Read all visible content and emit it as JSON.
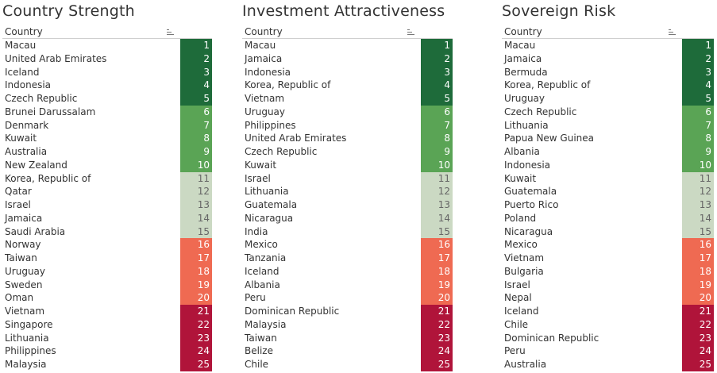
{
  "colors": {
    "tier1": "#1e6b3a",
    "tier2": "#5aa455",
    "tier3": "#cbd9c3",
    "tier4": "#ef6a52",
    "tier5": "#b0143a"
  },
  "panels": [
    {
      "title": "Country Strength",
      "column_header": "Country",
      "sort_icon": "sort-descending-icon",
      "rows": [
        {
          "country": "Macau",
          "rank": "1"
        },
        {
          "country": "United Arab Emirates",
          "rank": "2"
        },
        {
          "country": "Iceland",
          "rank": "3"
        },
        {
          "country": "Indonesia",
          "rank": "4"
        },
        {
          "country": "Czech Republic",
          "rank": "5"
        },
        {
          "country": "Brunei Darussalam",
          "rank": "6"
        },
        {
          "country": "Denmark",
          "rank": "7"
        },
        {
          "country": "Kuwait",
          "rank": "8"
        },
        {
          "country": "Australia",
          "rank": "9"
        },
        {
          "country": "New Zealand",
          "rank": "10"
        },
        {
          "country": "Korea, Republic of",
          "rank": "11"
        },
        {
          "country": "Qatar",
          "rank": "12"
        },
        {
          "country": "Israel",
          "rank": "13"
        },
        {
          "country": "Jamaica",
          "rank": "14"
        },
        {
          "country": "Saudi Arabia",
          "rank": "15"
        },
        {
          "country": "Norway",
          "rank": "16"
        },
        {
          "country": "Taiwan",
          "rank": "17"
        },
        {
          "country": "Uruguay",
          "rank": "18"
        },
        {
          "country": "Sweden",
          "rank": "19"
        },
        {
          "country": "Oman",
          "rank": "20"
        },
        {
          "country": "Vietnam",
          "rank": "21"
        },
        {
          "country": "Singapore",
          "rank": "22"
        },
        {
          "country": "Lithuania",
          "rank": "23"
        },
        {
          "country": "Philippines",
          "rank": "24"
        },
        {
          "country": "Malaysia",
          "rank": "25"
        }
      ]
    },
    {
      "title": "Investment Attractiveness",
      "column_header": "Country",
      "sort_icon": "sort-descending-icon",
      "rows": [
        {
          "country": "Macau",
          "rank": "1"
        },
        {
          "country": "Jamaica",
          "rank": "2"
        },
        {
          "country": "Indonesia",
          "rank": "3"
        },
        {
          "country": "Korea, Republic of",
          "rank": "4"
        },
        {
          "country": "Vietnam",
          "rank": "5"
        },
        {
          "country": "Uruguay",
          "rank": "6"
        },
        {
          "country": "Philippines",
          "rank": "7"
        },
        {
          "country": "United Arab Emirates",
          "rank": "8"
        },
        {
          "country": "Czech Republic",
          "rank": "9"
        },
        {
          "country": "Kuwait",
          "rank": "10"
        },
        {
          "country": "Israel",
          "rank": "11"
        },
        {
          "country": "Lithuania",
          "rank": "12"
        },
        {
          "country": "Guatemala",
          "rank": "13"
        },
        {
          "country": "Nicaragua",
          "rank": "14"
        },
        {
          "country": "India",
          "rank": "15"
        },
        {
          "country": "Mexico",
          "rank": "16"
        },
        {
          "country": "Tanzania",
          "rank": "17"
        },
        {
          "country": "Iceland",
          "rank": "18"
        },
        {
          "country": "Albania",
          "rank": "19"
        },
        {
          "country": "Peru",
          "rank": "20"
        },
        {
          "country": "Dominican Republic",
          "rank": "21"
        },
        {
          "country": "Malaysia",
          "rank": "22"
        },
        {
          "country": "Taiwan",
          "rank": "23"
        },
        {
          "country": "Belize",
          "rank": "24"
        },
        {
          "country": "Chile",
          "rank": "25"
        }
      ]
    },
    {
      "title": "Sovereign Risk",
      "column_header": "Country",
      "sort_icon": "sort-descending-icon",
      "rows": [
        {
          "country": "Macau",
          "rank": "1"
        },
        {
          "country": "Jamaica",
          "rank": "2"
        },
        {
          "country": "Bermuda",
          "rank": "3"
        },
        {
          "country": "Korea, Republic of",
          "rank": "4"
        },
        {
          "country": "Uruguay",
          "rank": "5"
        },
        {
          "country": "Czech Republic",
          "rank": "6"
        },
        {
          "country": "Lithuania",
          "rank": "7"
        },
        {
          "country": "Papua New Guinea",
          "rank": "8"
        },
        {
          "country": "Albania",
          "rank": "9"
        },
        {
          "country": "Indonesia",
          "rank": "10"
        },
        {
          "country": "Kuwait",
          "rank": "11"
        },
        {
          "country": "Guatemala",
          "rank": "12"
        },
        {
          "country": "Puerto Rico",
          "rank": "13"
        },
        {
          "country": "Poland",
          "rank": "14"
        },
        {
          "country": "Nicaragua",
          "rank": "15"
        },
        {
          "country": "Mexico",
          "rank": "16"
        },
        {
          "country": "Vietnam",
          "rank": "17"
        },
        {
          "country": "Bulgaria",
          "rank": "18"
        },
        {
          "country": "Israel",
          "rank": "19"
        },
        {
          "country": "Nepal",
          "rank": "20"
        },
        {
          "country": "Iceland",
          "rank": "21"
        },
        {
          "country": "Chile",
          "rank": "22"
        },
        {
          "country": "Dominican Republic",
          "rank": "23"
        },
        {
          "country": "Peru",
          "rank": "24"
        },
        {
          "country": "Australia",
          "rank": "25"
        }
      ]
    }
  ]
}
